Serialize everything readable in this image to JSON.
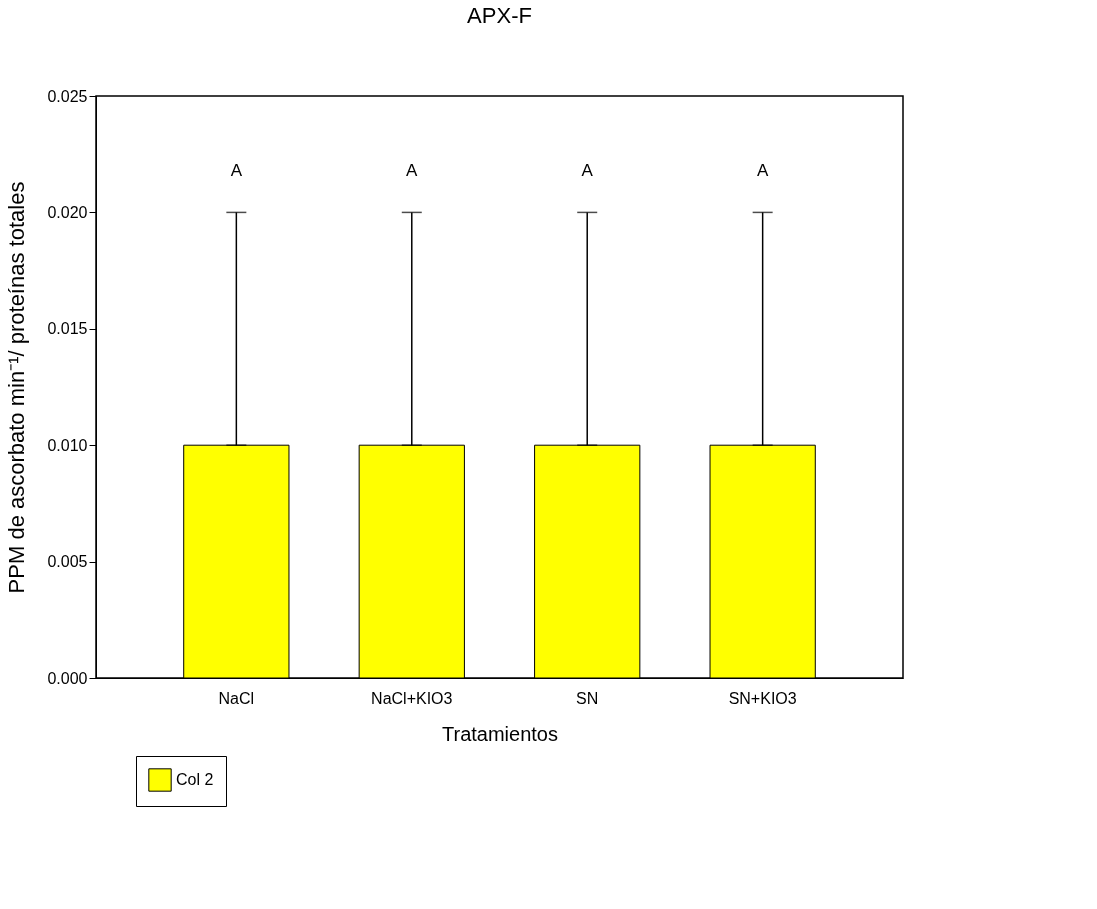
{
  "chart_data": {
    "type": "bar",
    "title": "APX-F",
    "xlabel": "Tratamientos",
    "ylabel": "PPM de ascorbato  min⁻¹/ proteínas totales",
    "categories": [
      "NaCl",
      "NaCl+KIO3",
      "SN",
      "SN+KIO3"
    ],
    "series": [
      {
        "name": "Col 2",
        "color": "#ffff00",
        "values": [
          0.01,
          0.01,
          0.01,
          0.01
        ],
        "errors": [
          [
            0.01,
            0.02
          ],
          [
            0.01,
            0.02
          ],
          [
            0.01,
            0.02
          ],
          [
            0.01,
            0.02
          ]
        ]
      }
    ],
    "ylim": [
      0,
      0.025
    ],
    "yticks": [
      {
        "value": 0,
        "label": "0.000"
      },
      {
        "value": 0.005,
        "label": "0.005"
      },
      {
        "value": 0.01,
        "label": "0.010"
      },
      {
        "value": 0.015,
        "label": "0.015"
      },
      {
        "value": 0.02,
        "label": "0.020"
      },
      {
        "value": 0.025,
        "label": "0.025"
      }
    ],
    "annotations": [
      "A",
      "A",
      "A",
      "A"
    ],
    "grid": false,
    "legend": "bottom left"
  }
}
